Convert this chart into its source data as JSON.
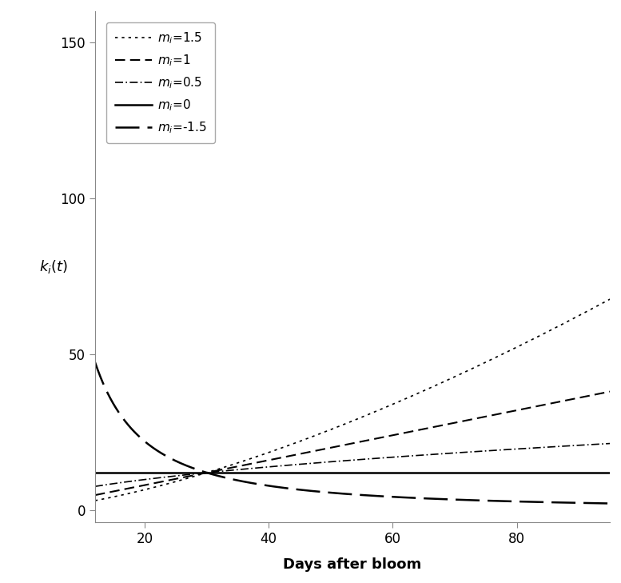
{
  "xlabel": "Days after bloom",
  "ylabel": "k_i(t)",
  "xlim": [
    12,
    95
  ],
  "ylim": [
    -4,
    160
  ],
  "x_ticks": [
    20,
    40,
    60,
    80
  ],
  "y_ticks": [
    0,
    50,
    100,
    150
  ],
  "convergence_t": 30,
  "convergence_k": 12.0,
  "t_start": 12,
  "t_end": 95,
  "series": [
    {
      "m": 1.5,
      "label": "m_i=1.5",
      "ls_key": "dotted",
      "linewidth": 1.2,
      "color": "#000000"
    },
    {
      "m": 1.0,
      "label": "m_i=1",
      "ls_key": "dashed",
      "linewidth": 1.5,
      "color": "#000000"
    },
    {
      "m": 0.5,
      "label": "m_i=0.5",
      "ls_key": "dashdot",
      "linewidth": 1.2,
      "color": "#000000"
    },
    {
      "m": 0.0,
      "label": "m_i=0",
      "ls_key": "solid",
      "linewidth": 1.8,
      "color": "#000000"
    },
    {
      "m": -1.5,
      "label": "m_i=-1.5",
      "ls_key": "longdash",
      "linewidth": 1.8,
      "color": "#000000"
    }
  ],
  "background_color": "#ffffff",
  "figsize": [
    7.77,
    7.29
  ],
  "dpi": 100
}
